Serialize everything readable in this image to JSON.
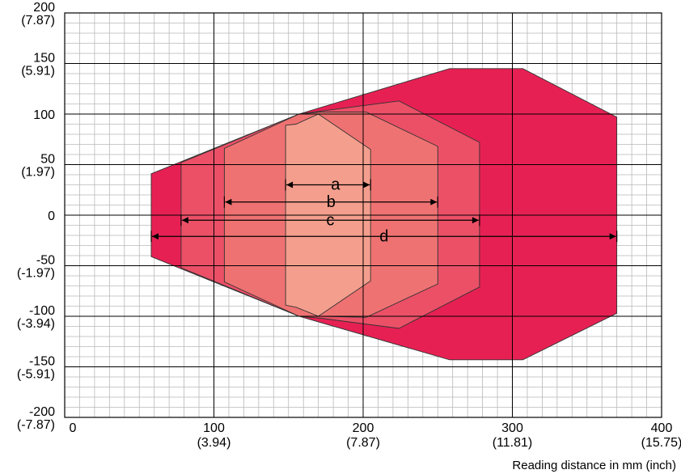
{
  "chart_data": {
    "type": "area",
    "xlabel": "Reading distance in mm (inch)",
    "xlim": [
      0,
      400
    ],
    "ylim": [
      -200,
      200
    ],
    "grid": true,
    "x_ticks": [
      {
        "value": 0,
        "label": "0",
        "label2": ""
      },
      {
        "value": 100,
        "label": "100",
        "label2": "(3.94)"
      },
      {
        "value": 200,
        "label": "200",
        "label2": "(7.87)"
      },
      {
        "value": 300,
        "label": "300",
        "label2": "(11.81)"
      },
      {
        "value": 400,
        "label": "400",
        "label2": "(15.75)"
      }
    ],
    "y_ticks": [
      {
        "value": 200,
        "label": "200",
        "label2": "(7.87)"
      },
      {
        "value": 150,
        "label": "150",
        "label2": "(5.91)"
      },
      {
        "value": 100,
        "label": "100",
        "label2": ""
      },
      {
        "value": 50,
        "label": "50",
        "label2": "(1.97)"
      },
      {
        "value": 0,
        "label": "0",
        "label2": ""
      },
      {
        "value": -50,
        "label": "-50",
        "label2": "(-1.97)"
      },
      {
        "value": -100,
        "label": "-100",
        "label2": "(-3.94)"
      },
      {
        "value": -150,
        "label": "-150",
        "label2": "(-5.91)"
      },
      {
        "value": -200,
        "label": "-200",
        "label2": "(-7.87)"
      }
    ],
    "fields": [
      {
        "name": "d",
        "color": "#E72053",
        "polygon": [
          [
            58,
            41
          ],
          [
            157,
            100
          ],
          [
            258,
            145
          ],
          [
            307,
            145
          ],
          [
            370,
            97
          ],
          [
            370,
            -97
          ],
          [
            307,
            -143
          ],
          [
            258,
            -143
          ],
          [
            157,
            -100
          ],
          [
            58,
            -41
          ]
        ]
      },
      {
        "name": "c",
        "color": "#EB5067",
        "polygon": [
          [
            78,
            52
          ],
          [
            157,
            100
          ],
          [
            172,
            103
          ],
          [
            224,
            113
          ],
          [
            278,
            72
          ],
          [
            278,
            -71
          ],
          [
            224,
            -112
          ],
          [
            172,
            -102
          ],
          [
            157,
            -100
          ],
          [
            78,
            -52
          ]
        ]
      },
      {
        "name": "b",
        "color": "#EF7272",
        "polygon": [
          [
            107,
            66
          ],
          [
            157,
            100
          ],
          [
            172,
            102
          ],
          [
            202,
            102
          ],
          [
            250,
            68
          ],
          [
            250,
            -68
          ],
          [
            202,
            -101
          ],
          [
            172,
            -100
          ],
          [
            157,
            -100
          ],
          [
            107,
            -66
          ]
        ]
      },
      {
        "name": "a",
        "color": "#F49E8D",
        "polygon": [
          [
            148,
            89
          ],
          [
            155,
            90
          ],
          [
            170,
            100
          ],
          [
            205,
            65
          ],
          [
            205,
            -65
          ],
          [
            170,
            -100
          ],
          [
            155,
            -91
          ],
          [
            148,
            -89
          ]
        ]
      }
    ],
    "ranges": [
      {
        "label": "a",
        "x_start": 148,
        "x_end": 205,
        "y": 30
      },
      {
        "label": "b",
        "x_start": 107,
        "x_end": 250,
        "y": 13
      },
      {
        "label": "c",
        "x_start": 78,
        "x_end": 278,
        "y": -5
      },
      {
        "label": "d",
        "x_start": 58,
        "x_end": 370,
        "y": -21
      }
    ]
  }
}
